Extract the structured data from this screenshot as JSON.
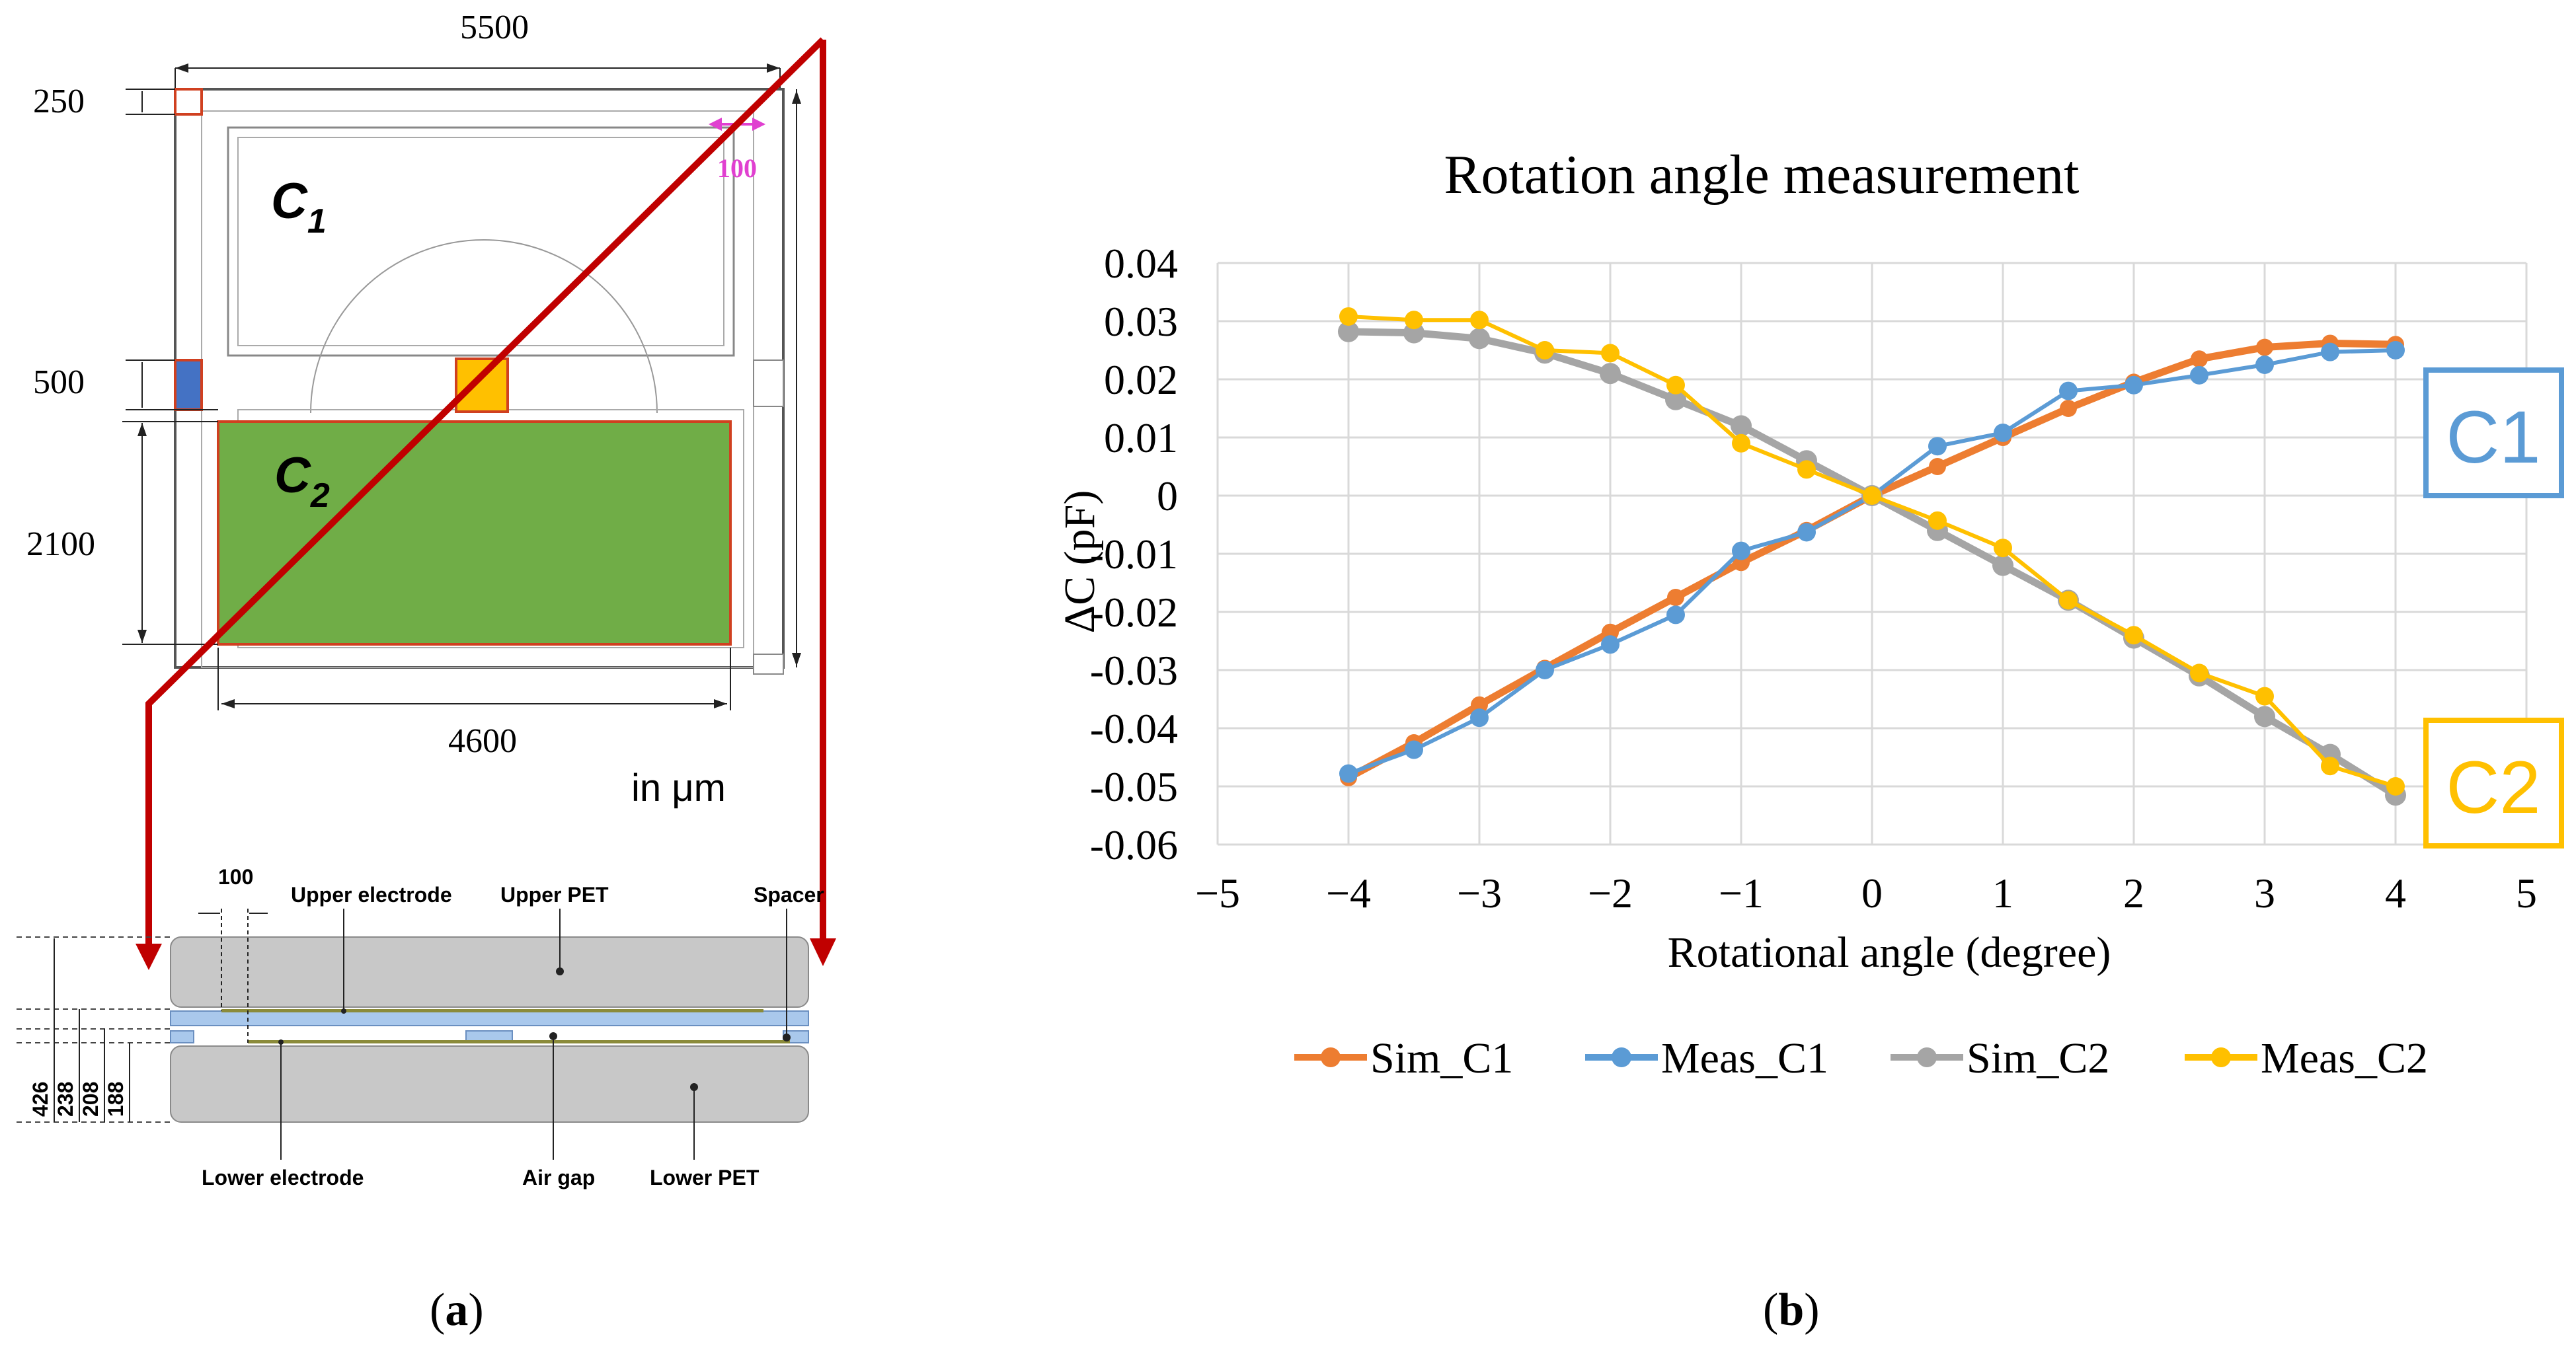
{
  "panel_a": {
    "dimensions": {
      "top_width": "5500",
      "top_margin": "250",
      "gap_height": "500",
      "c2_height": "2100",
      "bottom_width": "4600",
      "border_width": "100"
    },
    "labels": {
      "c1_letter": "C",
      "c1_sub": "1",
      "c2_letter": "C",
      "c2_sub": "2",
      "units": "in μm"
    },
    "cross_section": {
      "dim_100": "100",
      "upper_electrode": "Upper electrode",
      "upper_pet": "Upper PET",
      "spacer": "Spacer",
      "lower_electrode": "Lower electrode",
      "air_gap": "Air gap",
      "lower_pet": "Lower PET",
      "heights": [
        "426",
        "238",
        "208",
        "188"
      ]
    },
    "colors": {
      "c2_fill": "#70ad47",
      "red_line": "#c00000",
      "electrode_blue": "#4472c4",
      "overlap_yellow": "#ffc000",
      "dim_magenta": "#e040d0",
      "pet_gray": "#c8c8c8",
      "spacer_blue": "#a9c8ec"
    }
  },
  "panel_b": {
    "callouts": {
      "c1": "C1",
      "c2": "C2"
    },
    "colors": {
      "c1_box": "#5b9bd5",
      "c2_box": "#ffc000"
    }
  },
  "caption": {
    "a_open": "(",
    "a_letter": "a",
    "a_close": ")",
    "b_open": "(",
    "b_letter": "b",
    "b_close": ")"
  },
  "chart_data": {
    "type": "line",
    "title": "Rotation angle measurement",
    "xlabel": "Rotational angle (degree)",
    "ylabel": "ΔC (pF)",
    "xlim": [
      -5,
      5
    ],
    "ylim": [
      -0.06,
      0.04
    ],
    "x_ticks": [
      "−5",
      "−4",
      "−3",
      "−2",
      "−1",
      "0",
      "1",
      "2",
      "3",
      "4",
      "5"
    ],
    "y_ticks": [
      "0.04",
      "0.03",
      "0.02",
      "0.01",
      "0",
      "-0.01",
      "-0.02",
      "-0.03",
      "-0.04",
      "-0.05",
      "-0.06"
    ],
    "grid": true,
    "legend_position": "bottom",
    "x": [
      -4,
      -3.5,
      -3,
      -2.5,
      -2,
      -1.5,
      -1,
      -0.5,
      0,
      0.5,
      1,
      1.5,
      2,
      2.5,
      3,
      3.5,
      4
    ],
    "series": [
      {
        "name": "Sim_C1",
        "color": "#ed7d31",
        "values": [
          -0.0485,
          -0.0425,
          -0.036,
          -0.0297,
          -0.0235,
          -0.0175,
          -0.0115,
          -0.006,
          0,
          0.005,
          0.01,
          0.015,
          0.0195,
          0.0235,
          0.0255,
          0.0262,
          0.026
        ]
      },
      {
        "name": "Meas_C1",
        "color": "#5b9bd5",
        "values": [
          -0.0478,
          -0.0437,
          -0.0382,
          -0.03,
          -0.0256,
          -0.0205,
          -0.0095,
          -0.0063,
          0,
          0.0085,
          0.0108,
          0.018,
          0.019,
          0.0207,
          0.0225,
          0.0247,
          0.025
        ]
      },
      {
        "name": "Sim_C2",
        "color": "#a5a5a5",
        "values": [
          0.0282,
          0.028,
          0.027,
          0.0245,
          0.021,
          0.0165,
          0.012,
          0.006,
          0,
          -0.006,
          -0.012,
          -0.018,
          -0.0245,
          -0.031,
          -0.038,
          -0.0445,
          -0.0515
        ]
      },
      {
        "name": "Meas_C2",
        "color": "#ffc000",
        "values": [
          0.0308,
          0.0302,
          0.0302,
          0.025,
          0.0245,
          0.019,
          0.009,
          0.0045,
          0,
          -0.0043,
          -0.009,
          -0.018,
          -0.024,
          -0.0305,
          -0.0345,
          -0.0465,
          -0.05
        ]
      }
    ]
  }
}
